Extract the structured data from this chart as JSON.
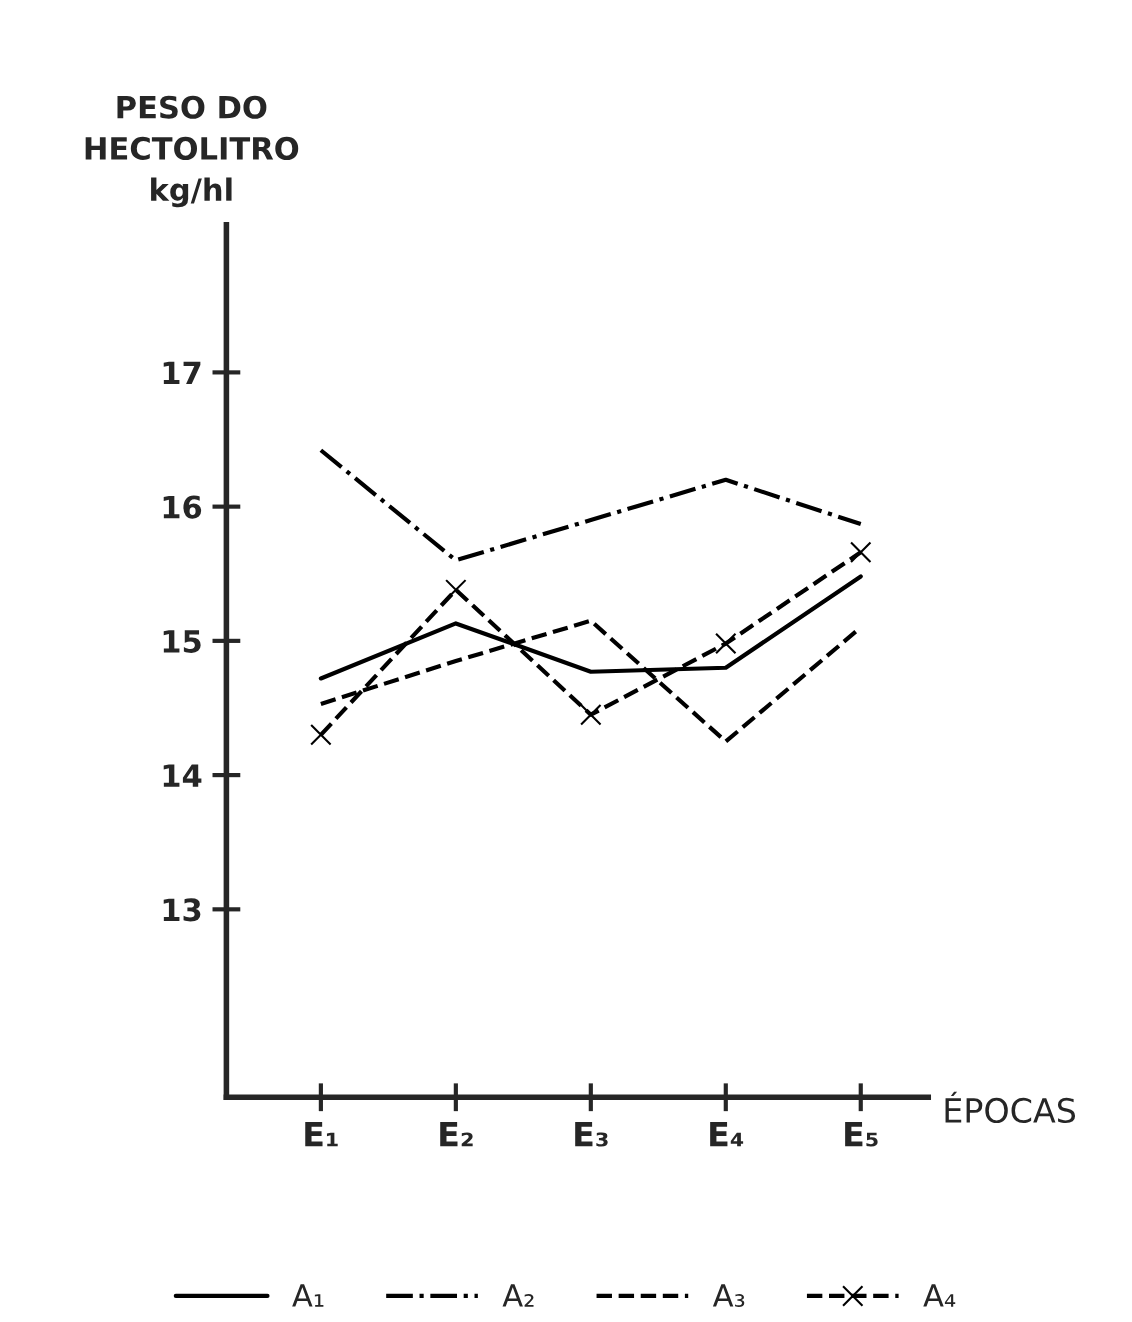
{
  "chart_data": {
    "type": "line",
    "ylabel": "PESO DO\nHECTOLITRO\nkg/hl",
    "xlabel": "ÉPOCAS",
    "categories": [
      "E₁",
      "E₂",
      "E₃",
      "E₄",
      "E₅"
    ],
    "series": [
      {
        "name": "A₁",
        "color": "#000000",
        "line_style": "solid",
        "marker": "none",
        "values": [
          14.72,
          15.13,
          14.77,
          14.8,
          15.48
        ]
      },
      {
        "name": "A₂",
        "color": "#000000",
        "line_style": "dashdot",
        "marker": "none",
        "values": [
          16.42,
          15.6,
          15.9,
          16.2,
          15.87
        ]
      },
      {
        "name": "A₃",
        "color": "#000000",
        "line_style": "dashed",
        "marker": "none",
        "values": [
          14.53,
          14.85,
          15.15,
          14.25,
          15.1
        ]
      },
      {
        "name": "A₄",
        "color": "#000000",
        "line_style": "dashed",
        "marker": "cross",
        "values": [
          14.3,
          15.38,
          14.45,
          14.98,
          15.66
        ]
      }
    ],
    "ylim": [
      11.6,
      18.1
    ],
    "yticks": [
      13,
      14,
      15,
      16,
      17
    ],
    "grid": false,
    "legend": "bottom"
  }
}
